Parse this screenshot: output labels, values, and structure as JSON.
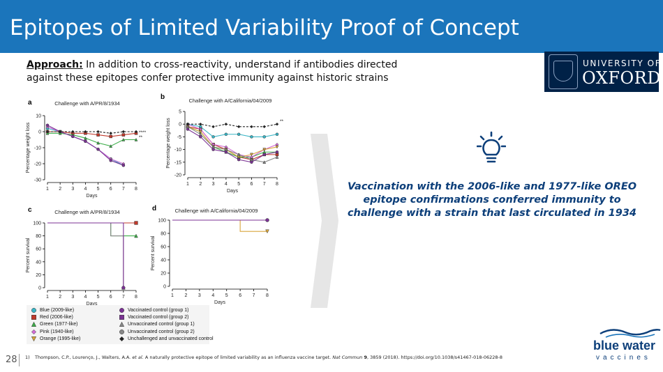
{
  "title": "Epitopes of Limited Variability Proof of Concept",
  "approach": {
    "label": "Approach:",
    "text": " In addition to cross-reactivity, understand if antibodies directed against these epitopes confer protective immunity against historic strains"
  },
  "oxford": {
    "line1": "UNIVERSITY OF",
    "line2": "OXFORD"
  },
  "conclusion": "Vaccination with the 2006-like and 1977-like OREO epitope confirmations conferred immunity to challenge with a strain that last circulated in 1934",
  "page_number": "28",
  "footnote": {
    "num": "1)",
    "pre": "Thompson, C.P., Lourenço, J., Walters, A.A. ",
    "etal": "et al.",
    "mid": " A naturally protective epitope of limited variability as an influenza vaccine target. ",
    "journal": "Nat Commun",
    "vol": " 9",
    "post": ", 3859 (2018). https://doi.org/10.1038/s41467-018-06228-8"
  },
  "bluewater": {
    "line1": "blue water",
    "line2": "vaccines"
  },
  "legend": [
    {
      "label": "Blue (2009-like)",
      "color": "#39b5c6",
      "shape": "circle"
    },
    {
      "label": "Red (2006-like)",
      "color": "#c0392b",
      "shape": "square"
    },
    {
      "label": "Green (1977-like)",
      "color": "#3dae49",
      "shape": "triangle"
    },
    {
      "label": "Pink (1940-like)",
      "color": "#d36ad6",
      "shape": "diamond"
    },
    {
      "label": "Orange (1995-like)",
      "color": "#d9a53c",
      "shape": "tri-down"
    },
    {
      "label": "Vaccinated control (group 1)",
      "color": "#7b3294",
      "shape": "circle"
    },
    {
      "label": "Vaccinated control (group 2)",
      "color": "#7b3294",
      "shape": "square"
    },
    {
      "label": "Unvaccinated control (group 1)",
      "color": "#888888",
      "shape": "triangle"
    },
    {
      "label": "Unvaccinated control (group 2)",
      "color": "#888888",
      "shape": "circle"
    },
    {
      "label": "Unchallenged and unvaccinated control",
      "color": "#222222",
      "shape": "diamond"
    }
  ],
  "chart_data": [
    {
      "panel": "a",
      "type": "line",
      "title": "Challenge with A/PR/8/1934",
      "xlabel": "Days",
      "ylabel": "Percentage weight loss",
      "xlim": [
        1,
        8
      ],
      "ylim": [
        -30,
        10
      ],
      "x": [
        1,
        2,
        3,
        4,
        5,
        6,
        7,
        8
      ],
      "yticks": [
        10,
        0,
        -10,
        -20,
        -30
      ],
      "annotations": [
        "****",
        "**"
      ],
      "series": [
        {
          "name": "Blue (2009-like)",
          "color": "#39b5c6",
          "values": [
            2,
            0,
            -3,
            -6,
            -11,
            -17,
            -21,
            null
          ]
        },
        {
          "name": "Red (2006-like)",
          "color": "#c0392b",
          "values": [
            0,
            0,
            -1,
            -1,
            -2,
            -3,
            -2,
            -1
          ]
        },
        {
          "name": "Green (1977-like)",
          "color": "#3dae49",
          "values": [
            -1,
            -1,
            -2,
            -4,
            -7,
            -9,
            -5,
            -5
          ]
        },
        {
          "name": "Pink (1940-like)",
          "color": "#d36ad6",
          "values": [
            3,
            0,
            -3,
            -6,
            -11,
            -17,
            -20,
            null
          ]
        },
        {
          "name": "Vaccinated control",
          "color": "#7b3294",
          "values": [
            4,
            0,
            -3,
            -6,
            -11,
            -18,
            -21,
            null
          ]
        },
        {
          "name": "Unchallenged and unvaccinated control",
          "color": "#222222",
          "dashed": true,
          "values": [
            0,
            0,
            0,
            0,
            0,
            -1,
            0,
            0
          ]
        }
      ]
    },
    {
      "panel": "b",
      "type": "line",
      "title": "Challenge with A/California/04/2009",
      "xlabel": "Days",
      "ylabel": "Percentage weight loss",
      "xlim": [
        1,
        8
      ],
      "ylim": [
        -20,
        5
      ],
      "x": [
        1,
        2,
        3,
        4,
        5,
        6,
        7,
        8
      ],
      "yticks": [
        5,
        0,
        -5,
        -10,
        -15,
        -20
      ],
      "annotations": [
        "**"
      ],
      "series": [
        {
          "name": "Blue (2009-like)",
          "color": "#39b5c6",
          "values": [
            0,
            -1,
            -5,
            -4,
            -4,
            -5,
            -5,
            -4
          ]
        },
        {
          "name": "Red (2006-like)",
          "color": "#c0392b",
          "values": [
            -1,
            -2,
            -8,
            -10,
            -13,
            -14,
            -12,
            -12
          ]
        },
        {
          "name": "Green (1977-like)",
          "color": "#3dae49",
          "values": [
            -1,
            -3,
            -9,
            -11,
            -13,
            -13,
            -11,
            -11
          ]
        },
        {
          "name": "Pink (1940-like)",
          "color": "#d36ad6",
          "values": [
            0,
            -2,
            -8,
            -9,
            -12,
            -13,
            -10,
            -8
          ]
        },
        {
          "name": "Orange (1995-like)",
          "color": "#d9a53c",
          "values": [
            -1,
            -3,
            -9,
            -10,
            -13,
            -12,
            -10,
            -9
          ]
        },
        {
          "name": "Unvaccinated control",
          "color": "#888888",
          "values": [
            -1,
            -4,
            -9,
            -10,
            -12,
            -14,
            -15,
            -13
          ]
        },
        {
          "name": "Vaccinated control",
          "color": "#7b3294",
          "values": [
            -2,
            -5,
            -10,
            -11,
            -14,
            -15,
            -12,
            -11
          ]
        },
        {
          "name": "Unchallenged and unvaccinated control",
          "color": "#222222",
          "dashed": true,
          "values": [
            0,
            0,
            -1,
            0,
            -1,
            -1,
            -1,
            0
          ]
        }
      ]
    },
    {
      "panel": "c",
      "type": "line",
      "title": "Challenge with A/PR/8/1934",
      "xlabel": "Days",
      "ylabel": "Percent survival",
      "xlim": [
        1,
        8
      ],
      "ylim": [
        0,
        100
      ],
      "x": [
        1,
        2,
        3,
        4,
        5,
        6,
        7,
        8
      ],
      "yticks": [
        100,
        80,
        60,
        40,
        20,
        0
      ],
      "series": [
        {
          "name": "Red (2006-like)",
          "color": "#c0392b",
          "values": [
            100,
            100,
            100,
            100,
            100,
            100,
            100,
            100
          ]
        },
        {
          "name": "Green (1977-like)",
          "color": "#3dae49",
          "values": [
            100,
            100,
            100,
            100,
            100,
            80,
            80,
            80
          ]
        },
        {
          "name": "Unvaccinated control",
          "color": "#888888",
          "values": [
            100,
            100,
            100,
            100,
            100,
            80,
            0,
            null
          ]
        },
        {
          "name": "Vaccinated control",
          "color": "#7b3294",
          "values": [
            100,
            100,
            100,
            100,
            100,
            100,
            0,
            null
          ]
        }
      ]
    },
    {
      "panel": "d",
      "type": "line",
      "title": "Challenge with A/California/04/2009",
      "xlabel": "Days",
      "ylabel": "Percent survival",
      "xlim": [
        1,
        8
      ],
      "ylim": [
        0,
        100
      ],
      "x": [
        1,
        2,
        3,
        4,
        5,
        6,
        7,
        8
      ],
      "yticks": [
        100,
        80,
        60,
        40,
        20,
        0
      ],
      "series": [
        {
          "name": "Orange (1995-like)",
          "color": "#d9a53c",
          "values": [
            100,
            100,
            100,
            100,
            100,
            83,
            83,
            83
          ]
        },
        {
          "name": "Blue (2009-like)",
          "color": "#39b5c6",
          "values": [
            100,
            100,
            100,
            100,
            100,
            100,
            100,
            100
          ]
        },
        {
          "name": "Vaccinated control",
          "color": "#7b3294",
          "values": [
            100,
            100,
            100,
            100,
            100,
            100,
            100,
            100
          ]
        }
      ]
    }
  ]
}
